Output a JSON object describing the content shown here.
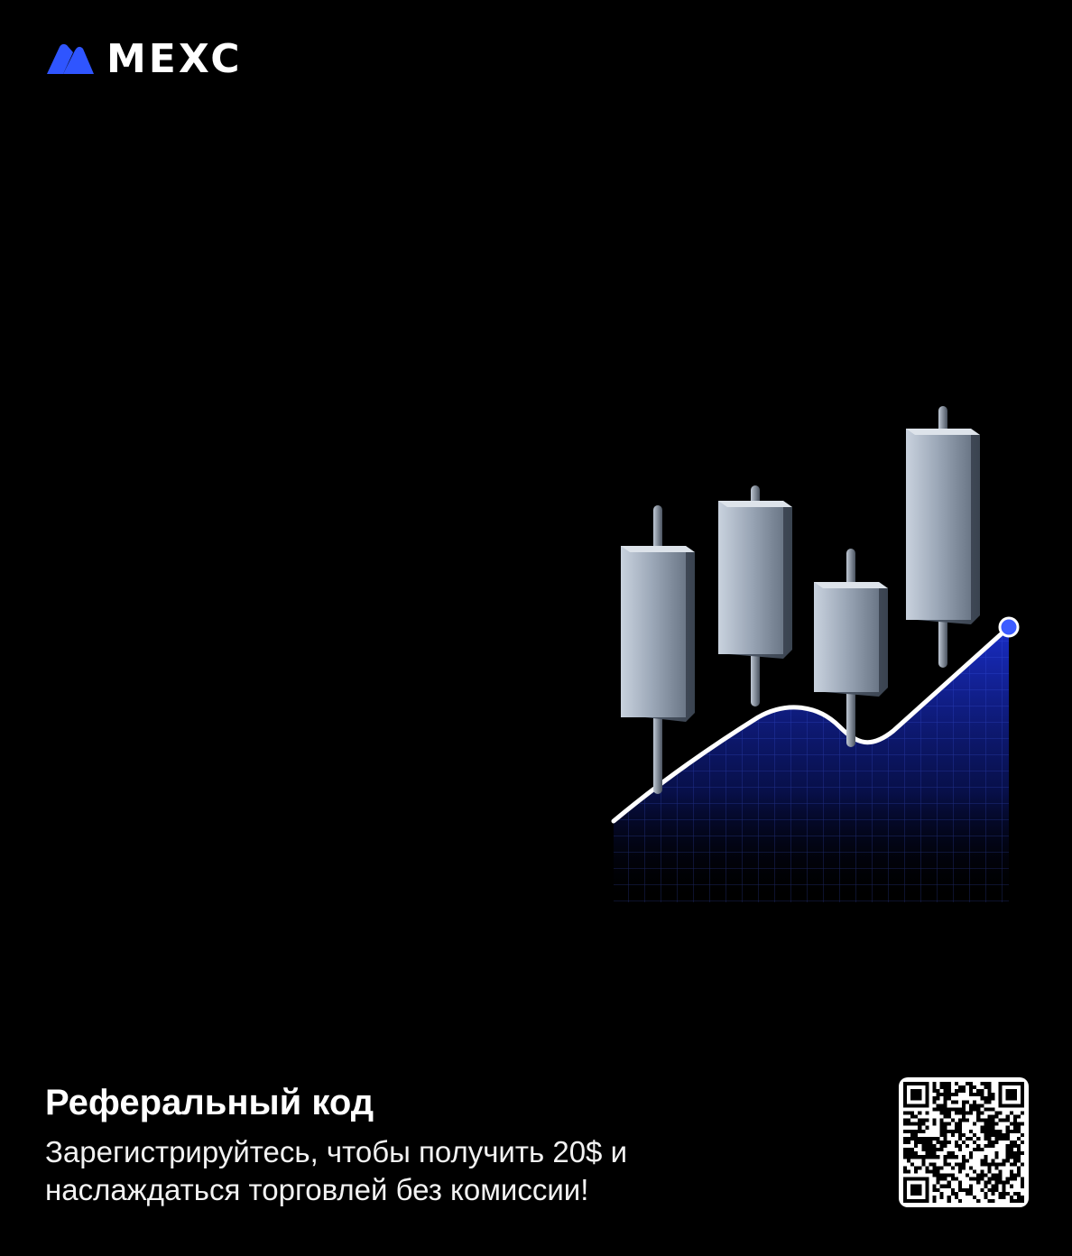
{
  "brand": {
    "name": "MEXC",
    "accent_color": "#2f55ff"
  },
  "headline": "Реферальный код",
  "description": "Зарегистрируйтесь, чтобы получить 20$ и наслаждаться торговлей без комиссии!",
  "illustration": {
    "icon": "candlestick-chart-icon",
    "candles": 4,
    "line_color": "#ffffff",
    "area_color": "#1a2fd0",
    "endpoint_color": "#3d5cff"
  },
  "qr": {
    "icon": "qr-code-icon"
  }
}
